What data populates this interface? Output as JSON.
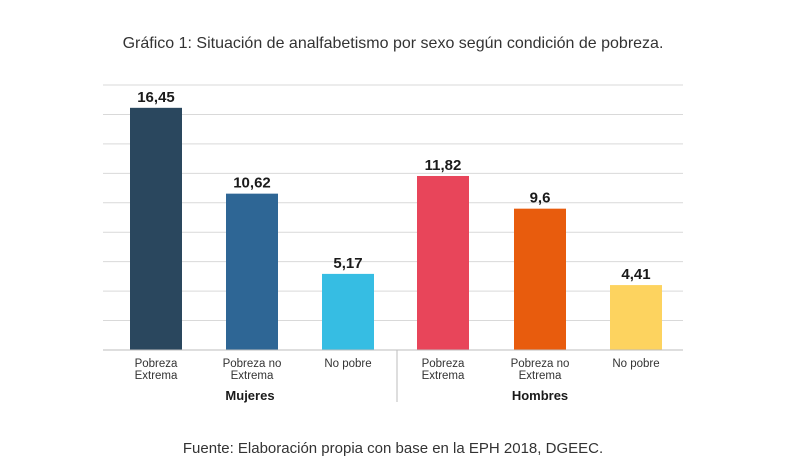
{
  "title": {
    "prefix": "Gráfico 1:",
    "text": "Situación de analfabetismo por sexo según condición de pobreza."
  },
  "source": "Fuente: Elaboración propia con base en la EPH 2018, DGEEC.",
  "chart_data": {
    "type": "bar",
    "ylim": [
      0,
      18
    ],
    "grid": true,
    "y_tick_labels_shown": false,
    "groups": [
      {
        "name": "Mujeres",
        "bars": [
          {
            "category": [
              "Pobreza",
              "Extrema"
            ],
            "value": 16.45,
            "label": "16,45",
            "color": "#2a475e"
          },
          {
            "category": [
              "Pobreza no",
              "Extrema"
            ],
            "value": 10.62,
            "label": "10,62",
            "color": "#2e6695"
          },
          {
            "category": [
              "No pobre"
            ],
            "value": 5.17,
            "label": "5,17",
            "color": "#36bde3"
          }
        ]
      },
      {
        "name": "Hombres",
        "bars": [
          {
            "category": [
              "Pobreza",
              "Extrema"
            ],
            "value": 11.82,
            "label": "11,82",
            "color": "#e8455a"
          },
          {
            "category": [
              "Pobreza no",
              "Extrema"
            ],
            "value": 9.6,
            "label": "9,6",
            "color": "#e85c0d"
          },
          {
            "category": [
              "No pobre"
            ],
            "value": 4.41,
            "label": "4,41",
            "color": "#fdd35f"
          }
        ]
      }
    ]
  }
}
